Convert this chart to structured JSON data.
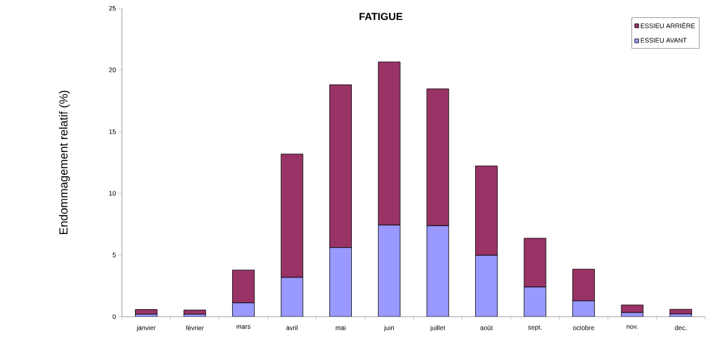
{
  "chart_data": {
    "type": "bar",
    "title": "FATIGUE",
    "ylabel": "Endommagement relatif (%)",
    "stacked": true,
    "legend": "top right",
    "categories": [
      "janvier",
      "février",
      "mars",
      "avril",
      "mai",
      "juin",
      "juillet",
      "août",
      "sept.",
      "octobre",
      "nov.",
      "dec."
    ],
    "series": [
      {
        "name": "ESSIEU AVANT",
        "color": "#9999ff",
        "values": [
          0.2,
          0.2,
          1.12,
          3.18,
          5.6,
          7.42,
          7.37,
          4.97,
          2.4,
          1.28,
          0.33,
          0.22
        ]
      },
      {
        "name": "ESSIEU ARRIÈRE",
        "color": "#993366",
        "values": [
          0.38,
          0.34,
          2.66,
          10.0,
          13.2,
          13.23,
          11.1,
          7.25,
          3.96,
          2.57,
          0.62,
          0.38
        ]
      }
    ],
    "ylim": [
      0,
      25
    ],
    "yticks": [
      0,
      5,
      10,
      15,
      20,
      25
    ]
  }
}
